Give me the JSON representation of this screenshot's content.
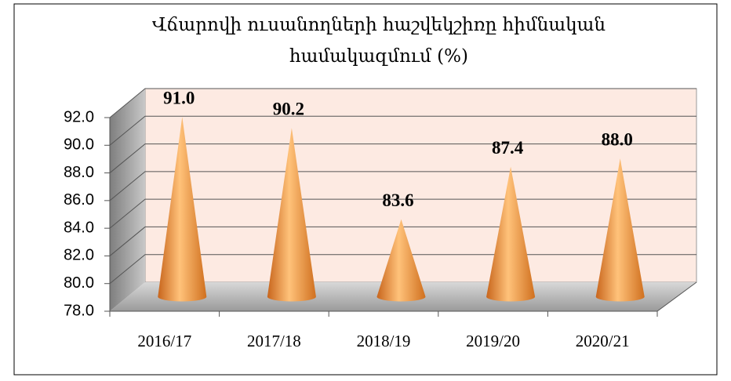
{
  "chart_data": {
    "type": "cone",
    "title": "Վճարովի ուսանողների հաշվեկշիռը հիմնական համակազմում (%)",
    "categories": [
      "2016/17",
      "2017/18",
      "2018/19",
      "2019/20",
      "2020/21"
    ],
    "values": [
      91.0,
      90.2,
      83.6,
      87.4,
      88.0
    ],
    "value_labels": [
      "91.0",
      "90.2",
      "83.6",
      "87.4",
      "88.0"
    ],
    "color": "#f0913a",
    "ylim": [
      78,
      92
    ],
    "yticks": [
      {
        "value": 78,
        "label": "78.0"
      },
      {
        "value": 80,
        "label": "80.0"
      },
      {
        "value": 82,
        "label": "82.0"
      },
      {
        "value": 84,
        "label": "84.0"
      },
      {
        "value": 86,
        "label": "86.0"
      },
      {
        "value": 88,
        "label": "88.0"
      },
      {
        "value": 90,
        "label": "90.0"
      },
      {
        "value": 92,
        "label": "92.0"
      }
    ],
    "grid": true
  }
}
